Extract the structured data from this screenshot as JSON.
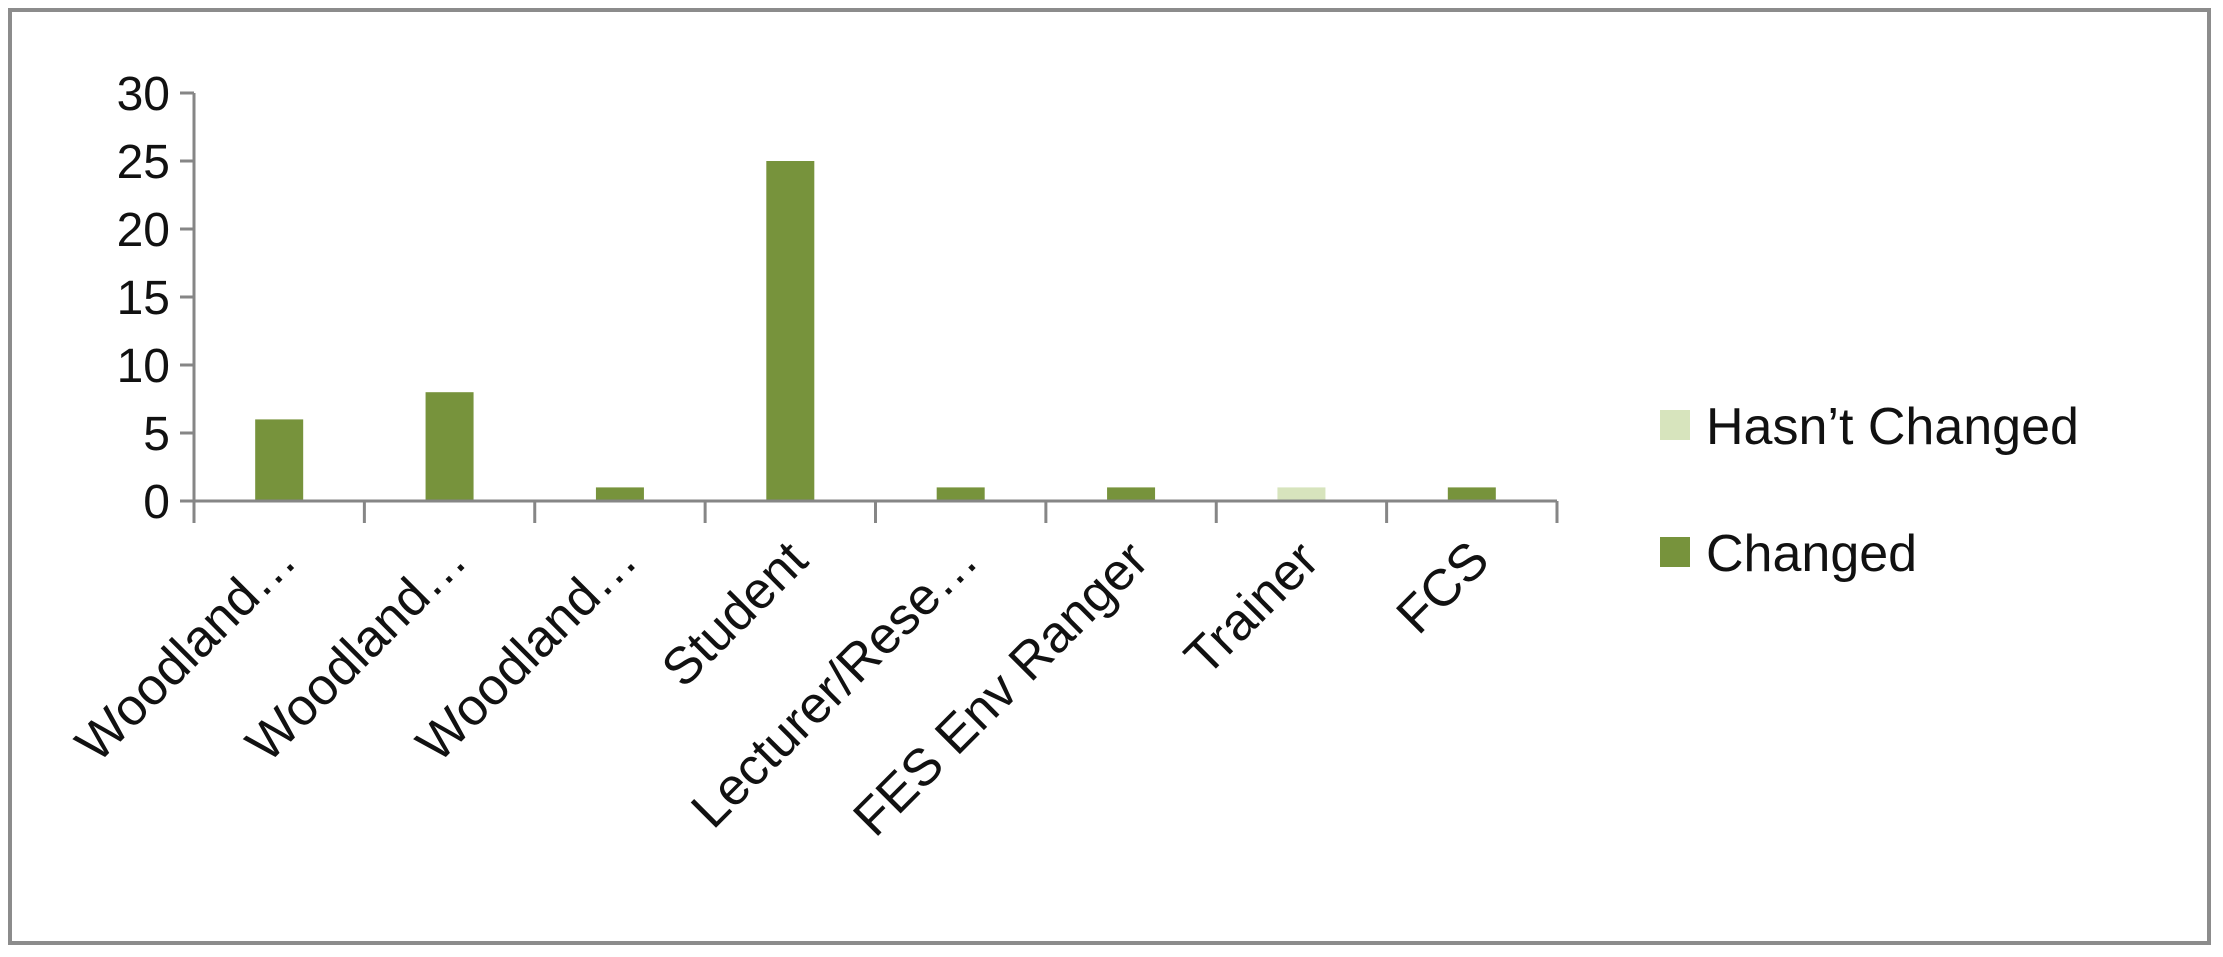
{
  "chart_data": {
    "type": "bar",
    "title": "",
    "xlabel": "",
    "ylabel": "",
    "ylim": [
      0,
      30
    ],
    "yticks": [
      0,
      5,
      10,
      15,
      20,
      25,
      30
    ],
    "categories": [
      "Woodland…",
      "Woodland…",
      "Woodland…",
      "Student",
      "Lecturer/Rese…",
      "FES Env Ranger",
      "Trainer",
      "FCS"
    ],
    "series": [
      {
        "name": "Hasn’t Changed",
        "color": "#d7e4bd",
        "values": [
          0,
          0,
          0,
          0,
          0,
          0,
          1,
          0
        ]
      },
      {
        "name": "Changed",
        "color": "#77933c",
        "values": [
          6,
          8,
          1,
          25,
          1,
          1,
          0,
          1
        ]
      }
    ],
    "legend_position": "right",
    "grid": false
  }
}
